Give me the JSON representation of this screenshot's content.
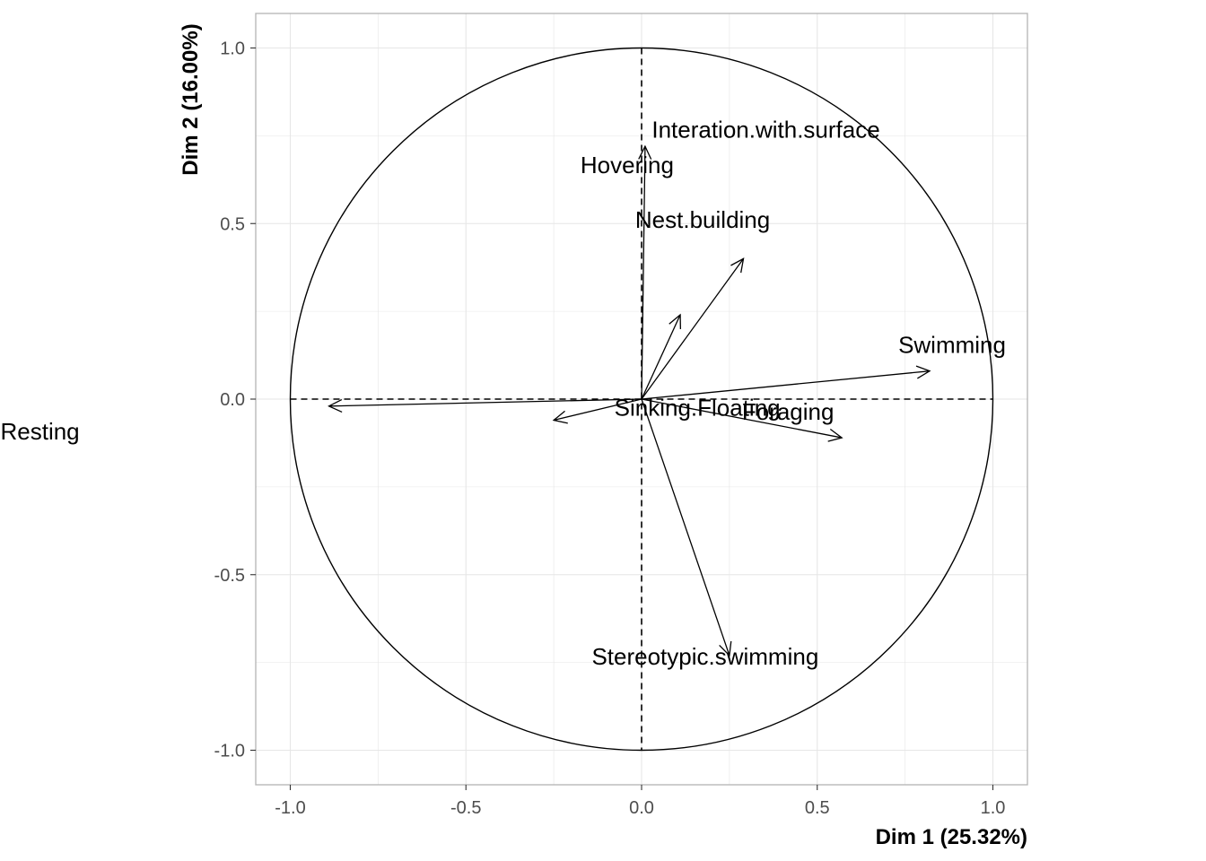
{
  "chart_data": {
    "type": "scatter",
    "subtype": "pca-variable-correlation-circle",
    "title": "",
    "xlabel": "Dim 1 (25.32%)",
    "ylabel": "Dim 2 (16.00%)",
    "xlim": [
      -1.1,
      1.1
    ],
    "ylim": [
      -1.1,
      1.1
    ],
    "x_ticks": [
      -1.0,
      -0.5,
      0.0,
      0.5,
      1.0
    ],
    "x_tick_labels": [
      "-1.0",
      "-0.5",
      "0.0",
      "0.5",
      "1.0"
    ],
    "y_ticks": [
      -1.0,
      -0.5,
      0.0,
      0.5,
      1.0
    ],
    "y_tick_labels": [
      "-1.0",
      "-0.5",
      "0.0",
      "0.5",
      "1.0"
    ],
    "grid": true,
    "unit_circle": true,
    "reference_lines": "dashed at x=0 and y=0",
    "series": [
      {
        "points": [
          {
            "name": "Hovering",
            "x": 0.01,
            "y": 0.72
          },
          {
            "name": "Interation.with.surface",
            "x": 0.29,
            "y": 0.4
          },
          {
            "name": "Nest.building",
            "x": 0.11,
            "y": 0.24
          },
          {
            "name": "Swimming",
            "x": 0.82,
            "y": 0.08
          },
          {
            "name": "Foraging",
            "x": 0.57,
            "y": -0.11
          },
          {
            "name": "Sinking.Floating",
            "x": -0.25,
            "y": -0.06
          },
          {
            "name": "Resting",
            "x": -0.89,
            "y": -0.02
          },
          {
            "name": "Stereotypic.swimming",
            "x": 0.25,
            "y": -0.73
          }
        ]
      }
    ],
    "colors": {
      "arrow": "#000000",
      "grid": "#e6e6e6",
      "panel_border": "#b3b3b3"
    }
  }
}
